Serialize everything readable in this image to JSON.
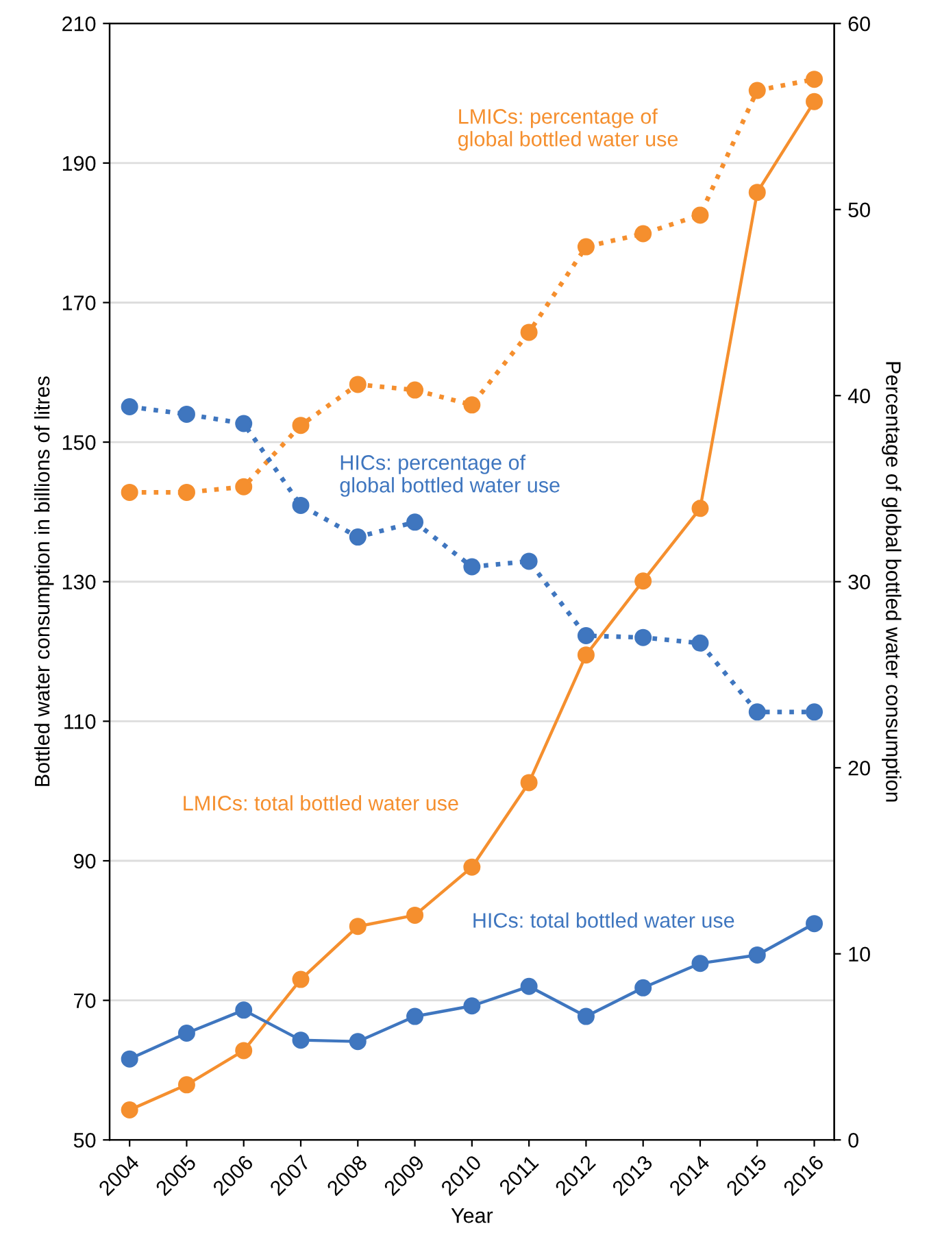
{
  "chart_data": {
    "type": "line",
    "xlabel": "Year",
    "ylabel": "Bottled water consumption in billions of litres",
    "y2label": "Percentage of global bottled water consumption",
    "categories": [
      "2004",
      "2005",
      "2006",
      "2007",
      "2008",
      "2009",
      "2010",
      "2011",
      "2012",
      "2013",
      "2014",
      "2015",
      "2016"
    ],
    "series": [
      {
        "name": "LMICs: percentage of\nglobal bottled water use",
        "color": "#f58f2e",
        "axis": "y2",
        "line_style": "dotted",
        "values": [
          34.8,
          34.8,
          35.1,
          38.4,
          40.6,
          40.3,
          39.5,
          43.4,
          48.0,
          48.7,
          49.7,
          56.4,
          57.0
        ]
      },
      {
        "name": "HICs: percentage of\nglobal bottled water use",
        "color": "#3f76bf",
        "axis": "y2",
        "line_style": "dotted",
        "values": [
          39.4,
          39.0,
          38.5,
          34.1,
          32.4,
          33.2,
          30.8,
          31.1,
          27.1,
          27.0,
          26.7,
          23.0,
          23.0
        ]
      },
      {
        "name": "LMICs: total bottled water use",
        "color": "#f58f2e",
        "line_style": "solid",
        "values": [
          54.3,
          57.9,
          62.8,
          73.0,
          80.6,
          82.2,
          89.1,
          101.2,
          119.5,
          130.1,
          140.5,
          185.8,
          198.8
        ]
      },
      {
        "name": "HICs: total bottled water use",
        "color": "#3f76bf",
        "line_style": "solid",
        "values": [
          61.6,
          65.3,
          68.6,
          64.3,
          64.1,
          67.7,
          69.2,
          72.0,
          67.7,
          71.8,
          75.3,
          76.5,
          81.0
        ]
      }
    ],
    "ylim": [
      50,
      210
    ],
    "yticks": [
      50,
      70,
      90,
      110,
      130,
      150,
      170,
      190,
      210
    ],
    "y2lim": [
      0,
      60
    ],
    "y2ticks": [
      0,
      10,
      20,
      30,
      40,
      50,
      60
    ],
    "grid": "y",
    "marker": "circle",
    "legend": false
  }
}
